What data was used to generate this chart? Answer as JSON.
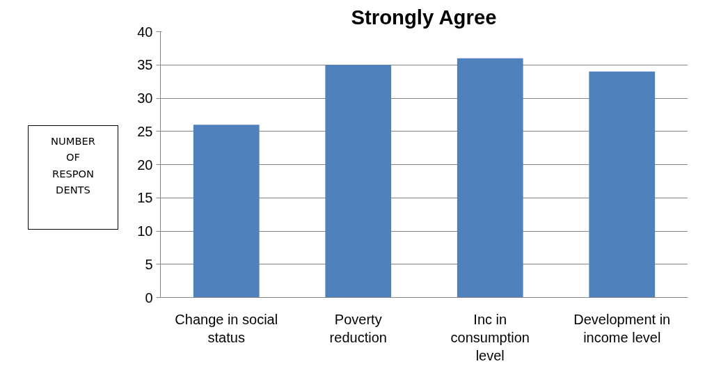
{
  "chart_data": {
    "type": "bar",
    "title": "Strongly Agree",
    "ylabel": "NUMBER\nOF\nRESPON\nDENTS",
    "categories": [
      "Change in social status",
      "Poverty reduction",
      "Inc in consumption level",
      "Development in income level"
    ],
    "values": [
      26,
      35,
      36,
      34
    ],
    "color": "#4f81bd",
    "ylim": [
      0,
      40
    ],
    "yticks": [
      0,
      5,
      10,
      15,
      20,
      25,
      30,
      35,
      40
    ],
    "grid": "y"
  }
}
